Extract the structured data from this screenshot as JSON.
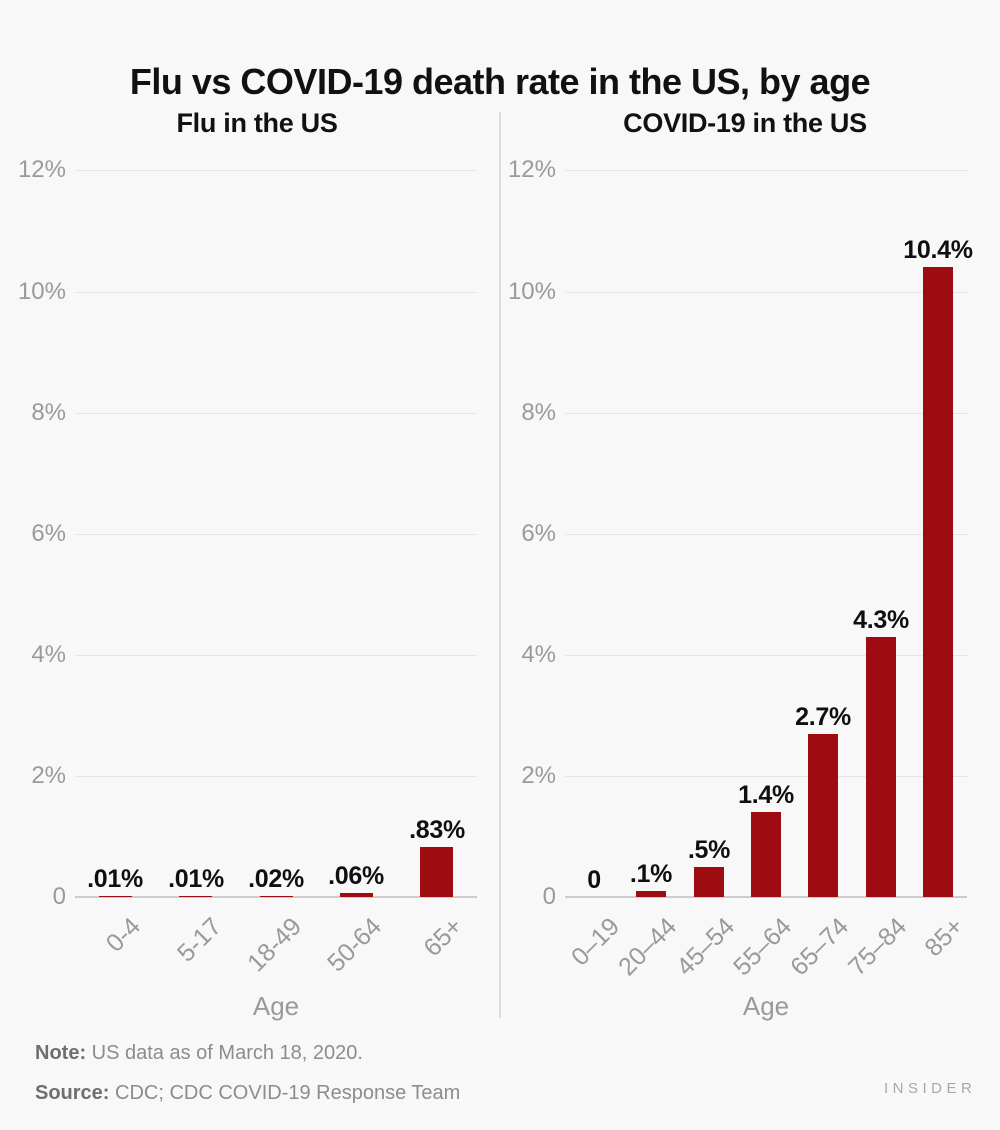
{
  "title": "Flu vs COVID-19 death rate in the US, by age",
  "note": {
    "prefix": "Note:",
    "text": " US data as of March 18, 2020."
  },
  "source": {
    "prefix": "Source:",
    "text": " CDC; CDC COVID-19 Response Team"
  },
  "brand": "INSIDER",
  "colors": {
    "bar": "#9e0b10",
    "background": "#f8f8f8",
    "gridline": "#e5e5e5",
    "baseline": "#cdcdcd",
    "axis_text": "#9a9a9a",
    "title_text": "#111111",
    "note_text": "#8c8c8c",
    "divider": "#dcdcdc"
  },
  "chart_data": [
    {
      "type": "bar",
      "title": "Flu in the US",
      "categories": [
        "0-4",
        "5-17",
        "18-49",
        "50-64",
        "65+"
      ],
      "values": [
        0.01,
        0.01,
        0.02,
        0.06,
        0.83
      ],
      "value_labels": [
        ".01%",
        ".01%",
        ".02%",
        ".06%",
        ".83%"
      ],
      "xlabel": "Age",
      "ylabel": "",
      "ylim": [
        0,
        12
      ],
      "grid": true,
      "legend": "none",
      "yticks": [
        {
          "value": 0,
          "label": "0"
        },
        {
          "value": 2,
          "label": "2%"
        },
        {
          "value": 4,
          "label": "4%"
        },
        {
          "value": 6,
          "label": "6%"
        },
        {
          "value": 8,
          "label": "8%"
        },
        {
          "value": 10,
          "label": "10%"
        },
        {
          "value": 12,
          "label": "12%"
        }
      ]
    },
    {
      "type": "bar",
      "title": "COVID-19 in the US",
      "categories": [
        "0–19",
        "20–44",
        "45–54",
        "55–64",
        "65–74",
        "75–84",
        "85+"
      ],
      "values": [
        0,
        0.1,
        0.5,
        1.4,
        2.7,
        4.3,
        10.4
      ],
      "value_labels": [
        "0",
        ".1%",
        ".5%",
        "1.4%",
        "2.7%",
        "4.3%",
        "10.4%"
      ],
      "xlabel": "Age",
      "ylabel": "",
      "ylim": [
        0,
        12
      ],
      "grid": true,
      "legend": "none",
      "yticks": [
        {
          "value": 0,
          "label": "0"
        },
        {
          "value": 2,
          "label": "2%"
        },
        {
          "value": 4,
          "label": "4%"
        },
        {
          "value": 6,
          "label": "6%"
        },
        {
          "value": 8,
          "label": "8%"
        },
        {
          "value": 10,
          "label": "10%"
        },
        {
          "value": 12,
          "label": "12%"
        }
      ]
    }
  ]
}
